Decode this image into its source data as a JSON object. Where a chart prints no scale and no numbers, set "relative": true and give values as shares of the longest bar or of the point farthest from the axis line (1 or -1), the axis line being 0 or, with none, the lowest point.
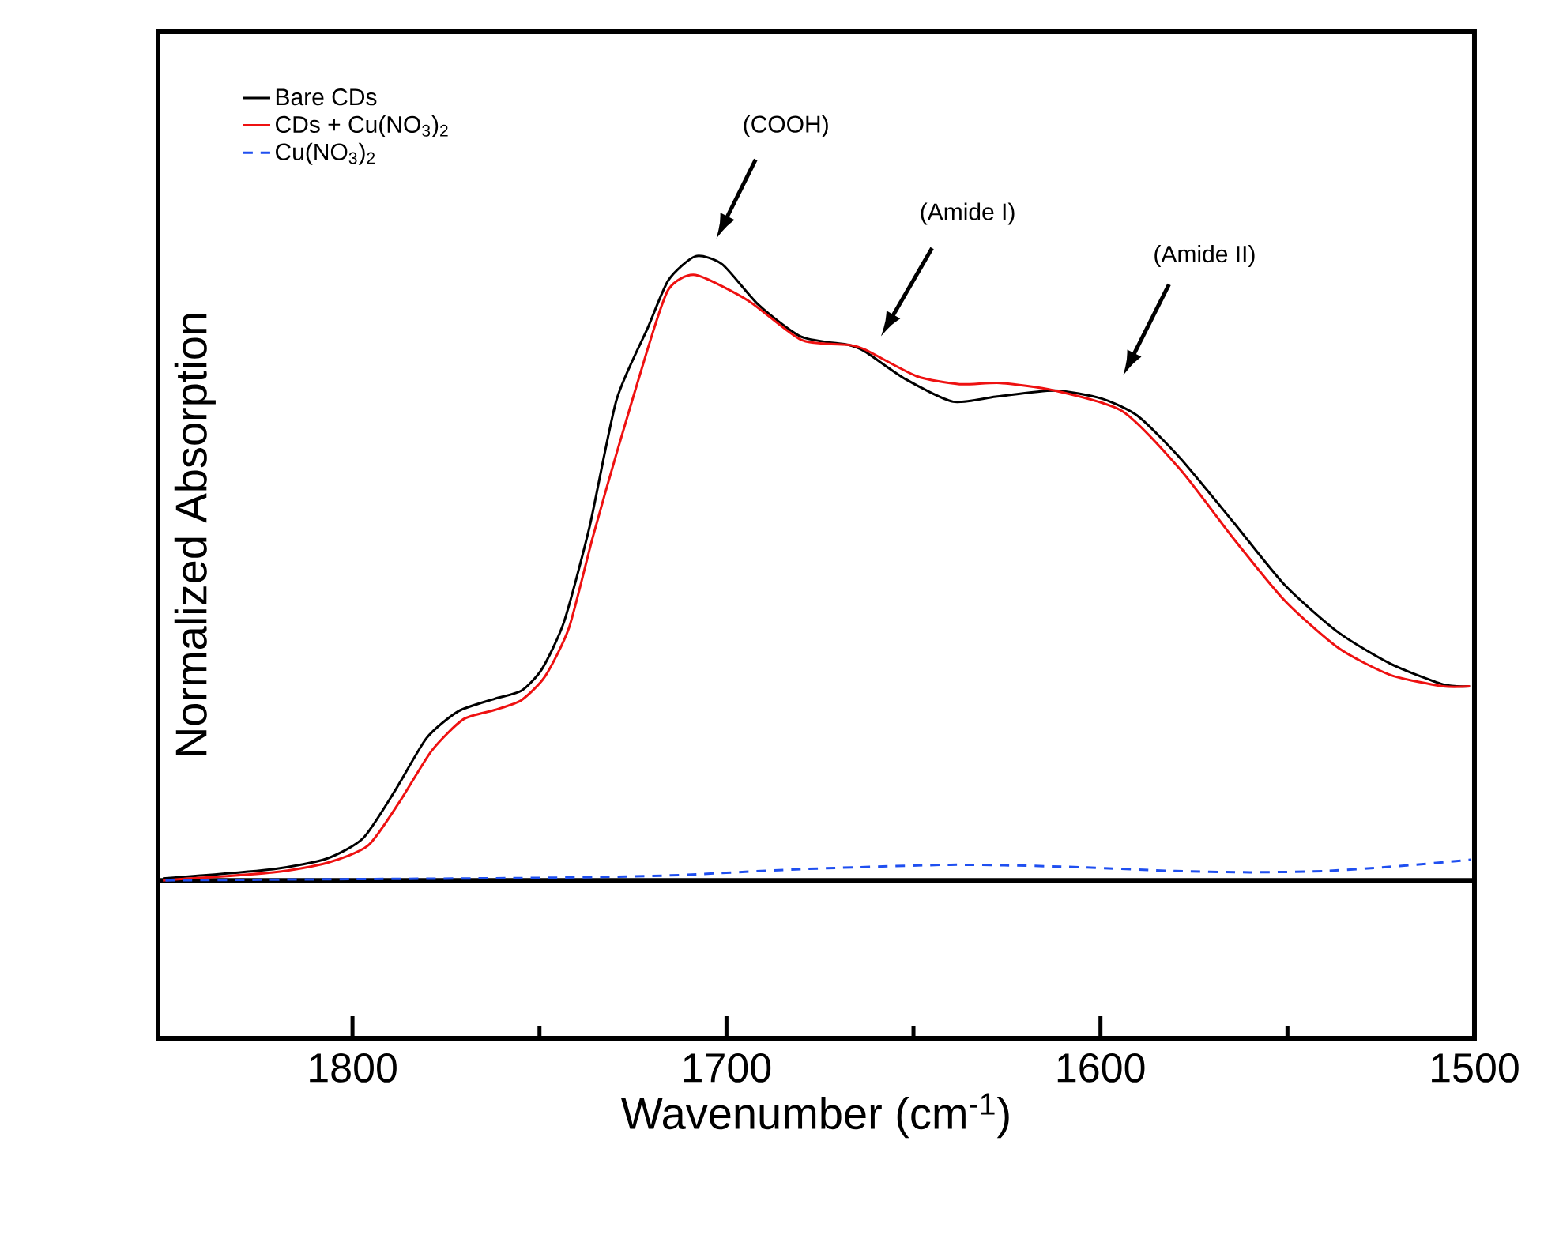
{
  "chart_data": {
    "type": "line",
    "relative": true,
    "xlabel": "Wavenumber (cm$^{-1}$)",
    "ylabel": "Normalized Absorption",
    "xlim": [
      1852,
      1500
    ],
    "xticks": [
      1800,
      1700,
      1600,
      1500
    ],
    "legend": "top left",
    "grid": false,
    "marker": "none",
    "series": [
      {
        "name": "Bare CDs",
        "color": "#000000",
        "line_style": "solid",
        "x": [
          1850.7,
          1821.2,
          1806.8,
          1797.1,
          1788.6,
          1780.2,
          1771.7,
          1762.0,
          1754.8,
          1749.3,
          1743.4,
          1736.6,
          1729.4,
          1721.0,
          1715.5,
          1708.3,
          1701.1,
          1691.4,
          1680.0,
          1667.3,
          1663.1,
          1652.1,
          1639.4,
          1628.0,
          1612.4,
          1599.7,
          1590.0,
          1578.6,
          1564.6,
          1550.7,
          1536.3,
          1522.4,
          1508.4,
          1501.2
        ],
        "values": [
          0.003,
          0.018,
          0.035,
          0.068,
          0.144,
          0.228,
          0.271,
          0.291,
          0.304,
          0.339,
          0.415,
          0.567,
          0.77,
          0.886,
          0.962,
          1.0,
          0.987,
          0.922,
          0.871,
          0.858,
          0.848,
          0.803,
          0.767,
          0.775,
          0.785,
          0.772,
          0.744,
          0.676,
          0.575,
          0.473,
          0.397,
          0.347,
          0.314,
          0.311
        ]
      },
      {
        "name": "CDs + Cu(NO$_{3}$)$_{2}$",
        "color": "#ee1111",
        "line_style": "solid",
        "x": [
          1850.7,
          1821.2,
          1806.8,
          1795.8,
          1787.3,
          1778.8,
          1770.4,
          1762.0,
          1754.8,
          1748.5,
          1742.1,
          1735.8,
          1729.4,
          1721.0,
          1715.5,
          1708.3,
          1694.2,
          1680.0,
          1667.3,
          1663.1,
          1649.2,
          1637.7,
          1626.8,
          1612.4,
          1594.2,
          1578.6,
          1564.6,
          1550.7,
          1536.3,
          1522.4,
          1508.4,
          1501.2
        ],
        "values": [
          0.0,
          0.013,
          0.028,
          0.056,
          0.127,
          0.208,
          0.258,
          0.273,
          0.289,
          0.327,
          0.405,
          0.549,
          0.684,
          0.853,
          0.947,
          0.97,
          0.929,
          0.866,
          0.858,
          0.851,
          0.808,
          0.795,
          0.797,
          0.785,
          0.752,
          0.658,
          0.549,
          0.448,
          0.372,
          0.329,
          0.311,
          0.311
        ]
      },
      {
        "name": "Cu(NO$_{3}$)$_{2}$",
        "color": "#1f4ff0",
        "line_style": "dashed",
        "x": [
          1850,
          1800,
          1750,
          1715,
          1680,
          1640,
          1610,
          1580,
          1560,
          1540,
          1520,
          1501
        ],
        "values": [
          0.0,
          0.002,
          0.004,
          0.008,
          0.018,
          0.025,
          0.022,
          0.015,
          0.013,
          0.015,
          0.023,
          0.033
        ]
      }
    ],
    "ref_lines": [
      {
        "axis": "y",
        "value": 0,
        "color": "#000000",
        "line_style": "solid"
      }
    ],
    "annotations": [
      "(COOH)",
      "(Amide I)",
      "(Amide II)"
    ]
  }
}
